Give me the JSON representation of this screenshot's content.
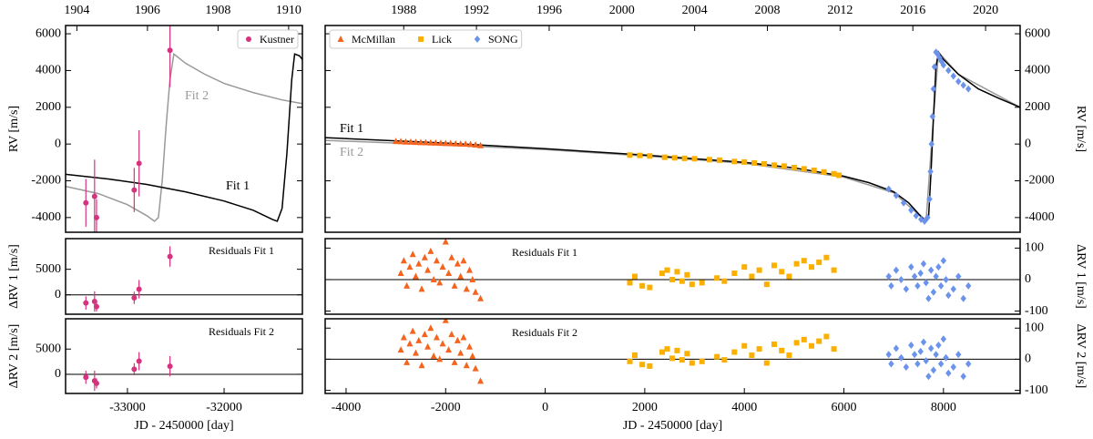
{
  "chart_data": [
    {
      "type": "scatter",
      "ylabel": "RV [m/s]",
      "xlim": [
        -33640,
        -31190
      ],
      "ylim": [
        -4800,
        6450
      ],
      "yticks": [
        -4000,
        -2000,
        0,
        2000,
        4000,
        6000
      ],
      "x2lim": [
        1903.68,
        1910.39
      ],
      "x2ticks": [
        1904,
        1906,
        1908,
        1910
      ],
      "legend": "upper right",
      "series": [
        {
          "name": "Kustner",
          "color": "#d6337f",
          "marker": "circle",
          "x": [
            -33430,
            -33340,
            -33320,
            -32930,
            -32880,
            -32560
          ],
          "values": [
            -3200,
            -2850,
            -4000,
            -2500,
            -1050,
            5100
          ],
          "errors": [
            1300,
            2000,
            1000,
            1200,
            1800,
            2000
          ]
        }
      ],
      "lines": [
        {
          "name": "Fit 2",
          "color": "#999999",
          "x": [
            -33640,
            -33300,
            -33000,
            -32800,
            -32720,
            -32680,
            -32640,
            -32600,
            -32560,
            -32520,
            -32400,
            -32200,
            -32000,
            -31700,
            -31400,
            -31190
          ],
          "values": [
            -2300,
            -2700,
            -3300,
            -3900,
            -4200,
            -4000,
            -2000,
            1000,
            3500,
            4900,
            4400,
            3800,
            3300,
            2800,
            2400,
            2200
          ]
        },
        {
          "name": "Fit 1",
          "color": "#000000",
          "x": [
            -33640,
            -33200,
            -32800,
            -32400,
            -32000,
            -31700,
            -31500,
            -31450,
            -31400,
            -31350,
            -31300,
            -31270,
            -31220,
            -31190
          ],
          "values": [
            -1650,
            -1900,
            -2200,
            -2600,
            -3100,
            -3600,
            -4100,
            -4200,
            -3500,
            -500,
            3500,
            4900,
            4800,
            4600
          ]
        }
      ]
    },
    {
      "type": "scatter",
      "ylabel": "RV [m/s]",
      "xlim": [
        -4420,
        9540
      ],
      "ylim": [
        -4800,
        6450
      ],
      "yticks": [
        -4000,
        -2000,
        0,
        2000,
        4000,
        6000
      ],
      "x2lim": [
        1983.68,
        2021.9
      ],
      "x2ticks": [
        1988,
        1992,
        1996,
        2000,
        2004,
        2008,
        2012,
        2016,
        2020
      ],
      "legend": "upper left",
      "series": [
        {
          "name": "McMillan",
          "color": "#f5641e",
          "marker": "triangle",
          "x": [
            -3000,
            -2900,
            -2800,
            -2700,
            -2600,
            -2500,
            -2400,
            -2300,
            -2200,
            -2100,
            -2000,
            -1900,
            -1800,
            -1700,
            -1600,
            -1500,
            -1400,
            -1300
          ],
          "values": [
            150,
            140,
            120,
            110,
            100,
            90,
            80,
            70,
            60,
            50,
            40,
            30,
            20,
            10,
            0,
            -20,
            -40,
            -80
          ]
        },
        {
          "name": "Lick",
          "color": "#fbb000",
          "marker": "square",
          "x": [
            1700,
            1900,
            2100,
            2400,
            2600,
            2800,
            3000,
            3300,
            3500,
            3800,
            4000,
            4200,
            4400,
            4600,
            4800,
            5000,
            5200,
            5400,
            5600,
            5800,
            5900
          ],
          "values": [
            -600,
            -620,
            -650,
            -720,
            -750,
            -780,
            -800,
            -850,
            -880,
            -950,
            -980,
            -1030,
            -1080,
            -1150,
            -1200,
            -1280,
            -1350,
            -1430,
            -1520,
            -1620,
            -1700
          ]
        },
        {
          "name": "SONG",
          "color": "#6b93ec",
          "marker": "diamond",
          "x": [
            6900,
            7050,
            7200,
            7350,
            7450,
            7550,
            7620,
            7680,
            7720,
            7740,
            7760,
            7780,
            7800,
            7820,
            7850,
            7880,
            7920,
            7960,
            8000,
            8100,
            8200,
            8300,
            8400,
            8500
          ],
          "values": [
            -2450,
            -2800,
            -3200,
            -3600,
            -3900,
            -4100,
            -4200,
            -4000,
            -3000,
            -1500,
            0,
            1500,
            3000,
            4200,
            5000,
            4900,
            4700,
            4500,
            4300,
            4000,
            3700,
            3400,
            3200,
            3000
          ]
        }
      ],
      "lines": [
        {
          "name": "Fit 2",
          "color": "#999999",
          "x": [
            -4420,
            -2000,
            0,
            2000,
            4000,
            6000,
            7000,
            7650,
            7800,
            7900,
            8300,
            9540
          ],
          "values": [
            200,
            -50,
            -300,
            -650,
            -1050,
            -1800,
            -2650,
            -4200,
            1500,
            5000,
            3800,
            2000
          ]
        },
        {
          "name": "Fit 1",
          "color": "#000000",
          "x": [
            -4420,
            -2000,
            0,
            2000,
            4000,
            5000,
            6000,
            6500,
            7000,
            7300,
            7500,
            7650,
            7700,
            7750,
            7800,
            7850,
            7900,
            8000,
            8300,
            8700,
            9100,
            9540
          ],
          "values": [
            350,
            50,
            -250,
            -600,
            -1000,
            -1300,
            -1750,
            -2100,
            -2600,
            -3200,
            -3800,
            -4200,
            -4050,
            -1500,
            1500,
            4200,
            5000,
            4600,
            3800,
            3000,
            2500,
            2000
          ]
        }
      ]
    },
    {
      "type": "scatter",
      "title": "Residuals Fit 1",
      "ylabel": "ΔRV 1 [m/s]",
      "xlim": [
        -33640,
        -31190
      ],
      "ylim": [
        -3800,
        11000
      ],
      "yticks": [
        0,
        5000
      ],
      "series": [
        {
          "color": "#d6337f",
          "marker": "circle",
          "x": [
            -33430,
            -33340,
            -33320,
            -32930,
            -32880,
            -32560
          ],
          "values": [
            -1600,
            -1300,
            -2300,
            -600,
            1100,
            7500
          ],
          "errors": [
            1300,
            2000,
            1000,
            1200,
            1800,
            2000
          ]
        }
      ]
    },
    {
      "type": "scatter",
      "title": "Residuals Fit 1",
      "ylabel": "ΔRV 1 [m/s]",
      "xlim": [
        -4420,
        9540
      ],
      "ylim": [
        -110,
        130
      ],
      "yticks": [
        -100,
        0,
        100
      ],
      "series": [
        {
          "color": "#f5641e",
          "marker": "triangle",
          "x": [
            -2900,
            -2840,
            -2780,
            -2720,
            -2660,
            -2600,
            -2540,
            -2480,
            -2420,
            -2360,
            -2300,
            -2240,
            -2180,
            -2120,
            -2060,
            -2000,
            -1940,
            -1880,
            -1820,
            -1760,
            -1700,
            -1640,
            -1580,
            -1520,
            -1460,
            -1400,
            -1300
          ],
          "values": [
            20,
            60,
            -20,
            40,
            80,
            10,
            50,
            -30,
            70,
            30,
            90,
            0,
            60,
            -10,
            40,
            120,
            20,
            70,
            -20,
            50,
            10,
            60,
            -30,
            30,
            0,
            -40,
            -60
          ]
        },
        {
          "color": "#fbb000",
          "marker": "square",
          "x": [
            1700,
            1800,
            1950,
            2100,
            2350,
            2450,
            2550,
            2650,
            2750,
            2850,
            2950,
            3150,
            3450,
            3600,
            3800,
            4000,
            4150,
            4300,
            4450,
            4600,
            4750,
            4900,
            5050,
            5200,
            5350,
            5500,
            5650,
            5800
          ],
          "values": [
            -10,
            10,
            -20,
            -25,
            20,
            30,
            0,
            25,
            -5,
            15,
            -15,
            -10,
            5,
            -5,
            20,
            40,
            10,
            30,
            -15,
            45,
            25,
            10,
            50,
            60,
            40,
            55,
            70,
            30
          ]
        },
        {
          "color": "#6b93ec",
          "marker": "diamond",
          "x": [
            6900,
            6950,
            7050,
            7150,
            7250,
            7350,
            7420,
            7480,
            7540,
            7600,
            7650,
            7700,
            7750,
            7800,
            7850,
            7900,
            7950,
            8000,
            8050,
            8100,
            8200,
            8300,
            8400,
            8500
          ],
          "values": [
            10,
            -20,
            30,
            0,
            -30,
            40,
            10,
            -20,
            20,
            50,
            -10,
            -60,
            30,
            -40,
            10,
            40,
            -20,
            60,
            0,
            -50,
            -30,
            10,
            -60,
            -20
          ]
        }
      ]
    },
    {
      "type": "scatter",
      "title": "Residuals Fit 2",
      "ylabel": "ΔRV 2 [m/s]",
      "xlabel": "JD - 2450000 [day]",
      "xlim": [
        -33640,
        -31190
      ],
      "ylim": [
        -3800,
        11000
      ],
      "yticks": [
        0,
        5000
      ],
      "xticks": [
        -33000,
        -32000
      ],
      "series": [
        {
          "color": "#d6337f",
          "marker": "circle",
          "x": [
            -33430,
            -33340,
            -33320,
            -32930,
            -32880,
            -32560
          ],
          "values": [
            -600,
            -1300,
            -1800,
            1000,
            2600,
            1600
          ],
          "errors": [
            1300,
            2000,
            1000,
            1200,
            1800,
            2000
          ]
        }
      ]
    },
    {
      "type": "scatter",
      "title": "Residuals Fit 2",
      "ylabel": "ΔRV 2 [m/s]",
      "xlabel": "JD - 2450000 [day]",
      "xlim": [
        -4420,
        9540
      ],
      "ylim": [
        -110,
        130
      ],
      "yticks": [
        -100,
        0,
        100
      ],
      "xticks": [
        -4000,
        -2000,
        0,
        2000,
        4000,
        6000,
        8000
      ],
      "series": [
        {
          "color": "#f5641e",
          "marker": "triangle",
          "x": [
            -2900,
            -2840,
            -2780,
            -2720,
            -2660,
            -2600,
            -2540,
            -2480,
            -2420,
            -2360,
            -2300,
            -2240,
            -2180,
            -2120,
            -2060,
            -2000,
            -1940,
            -1880,
            -1820,
            -1760,
            -1700,
            -1640,
            -1580,
            -1520,
            -1460,
            -1400,
            -1300
          ],
          "values": [
            30,
            70,
            -10,
            50,
            90,
            20,
            60,
            -20,
            80,
            40,
            100,
            10,
            70,
            0,
            50,
            125,
            30,
            80,
            -10,
            60,
            20,
            70,
            -20,
            40,
            10,
            -30,
            -70
          ]
        },
        {
          "color": "#fbb000",
          "marker": "square",
          "x": [
            1700,
            1800,
            1950,
            2100,
            2350,
            2450,
            2550,
            2650,
            2750,
            2850,
            2950,
            3150,
            3450,
            3600,
            3800,
            4000,
            4150,
            4300,
            4450,
            4600,
            4750,
            4900,
            5050,
            5200,
            5350,
            5500,
            5650,
            5800
          ],
          "values": [
            -7,
            13,
            -17,
            -22,
            23,
            33,
            3,
            28,
            -2,
            18,
            -12,
            -7,
            8,
            -2,
            23,
            43,
            13,
            33,
            -12,
            48,
            28,
            13,
            53,
            63,
            43,
            58,
            73,
            33
          ]
        },
        {
          "color": "#6b93ec",
          "marker": "diamond",
          "x": [
            6900,
            6950,
            7050,
            7150,
            7250,
            7350,
            7420,
            7480,
            7540,
            7600,
            7650,
            7700,
            7750,
            7800,
            7850,
            7900,
            7950,
            8000,
            8050,
            8100,
            8200,
            8300,
            8400,
            8500
          ],
          "values": [
            15,
            -15,
            35,
            5,
            -25,
            45,
            15,
            -15,
            25,
            55,
            -5,
            -55,
            35,
            -35,
            15,
            45,
            -15,
            65,
            5,
            -45,
            -25,
            15,
            -55,
            -15
          ]
        }
      ]
    }
  ]
}
